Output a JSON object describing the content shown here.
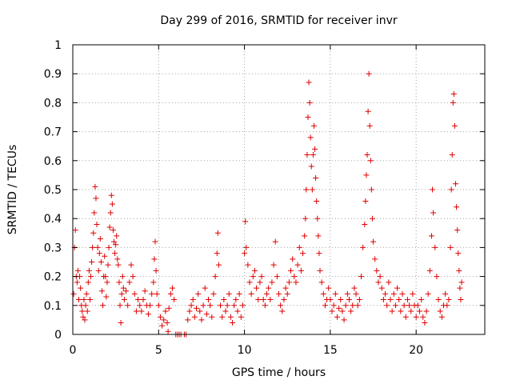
{
  "chart_data": {
    "type": "scatter",
    "title": "Day 299 of 2016, SRMTID for receiver invr",
    "xlabel": "GPS time / hours",
    "ylabel": "SRMTID / TECUs",
    "xlim": [
      0,
      24
    ],
    "ylim": [
      0,
      1
    ],
    "xticks": [
      0,
      5,
      10,
      15,
      20
    ],
    "yticks": [
      0,
      0.1,
      0.2,
      0.3,
      0.4,
      0.5,
      0.6,
      0.7,
      0.8,
      0.9,
      1
    ],
    "xtick_labels": [
      "0",
      "5",
      "10",
      "15",
      "20"
    ],
    "ytick_labels": [
      "0",
      "0.1",
      "0.2",
      "0.3",
      "0.4",
      "0.5",
      "0.6",
      "0.7",
      "0.8",
      "0.9",
      "1"
    ],
    "grid": true,
    "marker": "plus",
    "color": "#e00000",
    "series": [
      {
        "name": "SRMTID",
        "points": [
          [
            0.05,
            0.14
          ],
          [
            0.1,
            0.3
          ],
          [
            0.15,
            0.36
          ],
          [
            0.2,
            0.2
          ],
          [
            0.25,
            0.18
          ],
          [
            0.3,
            0.22
          ],
          [
            0.35,
            0.12
          ],
          [
            0.4,
            0.2
          ],
          [
            0.45,
            0.16
          ],
          [
            0.5,
            0.1
          ],
          [
            0.55,
            0.08
          ],
          [
            0.6,
            0.06
          ],
          [
            0.65,
            0.12
          ],
          [
            0.7,
            0.05
          ],
          [
            0.75,
            0.1
          ],
          [
            0.8,
            0.14
          ],
          [
            0.85,
            0.08
          ],
          [
            0.9,
            0.18
          ],
          [
            0.95,
            0.22
          ],
          [
            1.0,
            0.12
          ],
          [
            1.05,
            0.2
          ],
          [
            1.1,
            0.25
          ],
          [
            1.15,
            0.3
          ],
          [
            1.2,
            0.35
          ],
          [
            1.25,
            0.42
          ],
          [
            1.3,
            0.51
          ],
          [
            1.35,
            0.47
          ],
          [
            1.4,
            0.38
          ],
          [
            1.45,
            0.3
          ],
          [
            1.5,
            0.22
          ],
          [
            1.55,
            0.28
          ],
          [
            1.6,
            0.33
          ],
          [
            1.65,
            0.25
          ],
          [
            1.7,
            0.15
          ],
          [
            1.75,
            0.1
          ],
          [
            1.8,
            0.2
          ],
          [
            1.85,
            0.27
          ],
          [
            1.9,
            0.2
          ],
          [
            1.95,
            0.13
          ],
          [
            2.0,
            0.18
          ],
          [
            2.05,
            0.24
          ],
          [
            2.1,
            0.3
          ],
          [
            2.15,
            0.37
          ],
          [
            2.2,
            0.42
          ],
          [
            2.25,
            0.48
          ],
          [
            2.3,
            0.45
          ],
          [
            2.35,
            0.36
          ],
          [
            2.4,
            0.32
          ],
          [
            2.45,
            0.28
          ],
          [
            2.5,
            0.31
          ],
          [
            2.55,
            0.34
          ],
          [
            2.6,
            0.26
          ],
          [
            2.65,
            0.24
          ],
          [
            2.7,
            0.18
          ],
          [
            2.75,
            0.1
          ],
          [
            2.8,
            0.04
          ],
          [
            2.85,
            0.14
          ],
          [
            2.9,
            0.2
          ],
          [
            2.95,
            0.16
          ],
          [
            3.0,
            0.12
          ],
          [
            3.1,
            0.15
          ],
          [
            3.2,
            0.1
          ],
          [
            3.3,
            0.18
          ],
          [
            3.4,
            0.24
          ],
          [
            3.5,
            0.2
          ],
          [
            3.6,
            0.14
          ],
          [
            3.7,
            0.08
          ],
          [
            3.8,
            0.12
          ],
          [
            3.9,
            0.1
          ],
          [
            4.0,
            0.08
          ],
          [
            4.1,
            0.12
          ],
          [
            4.2,
            0.15
          ],
          [
            4.3,
            0.1
          ],
          [
            4.4,
            0.07
          ],
          [
            4.5,
            0.1
          ],
          [
            4.6,
            0.14
          ],
          [
            4.7,
            0.18
          ],
          [
            4.75,
            0.26
          ],
          [
            4.8,
            0.32
          ],
          [
            4.85,
            0.22
          ],
          [
            4.9,
            0.14
          ],
          [
            5.0,
            0.1
          ],
          [
            5.1,
            0.06
          ],
          [
            5.2,
            0.03
          ],
          [
            5.3,
            0.05
          ],
          [
            5.4,
            0.08
          ],
          [
            5.5,
            0.04
          ],
          [
            5.55,
            0.01
          ],
          [
            5.6,
            0.09
          ],
          [
            5.7,
            0.14
          ],
          [
            5.8,
            0.16
          ],
          [
            5.9,
            0.12
          ],
          [
            6.0,
            0.0
          ],
          [
            6.1,
            0.0
          ],
          [
            6.2,
            0.0
          ],
          [
            6.3,
            0.0
          ],
          [
            6.5,
            0.0
          ],
          [
            6.6,
            0.0
          ],
          [
            6.7,
            0.05
          ],
          [
            6.8,
            0.08
          ],
          [
            6.9,
            0.1
          ],
          [
            7.0,
            0.12
          ],
          [
            7.1,
            0.06
          ],
          [
            7.2,
            0.09
          ],
          [
            7.3,
            0.14
          ],
          [
            7.4,
            0.08
          ],
          [
            7.5,
            0.05
          ],
          [
            7.6,
            0.1
          ],
          [
            7.7,
            0.16
          ],
          [
            7.8,
            0.07
          ],
          [
            7.9,
            0.12
          ],
          [
            8.0,
            0.1
          ],
          [
            8.1,
            0.06
          ],
          [
            8.2,
            0.14
          ],
          [
            8.3,
            0.2
          ],
          [
            8.4,
            0.28
          ],
          [
            8.45,
            0.35
          ],
          [
            8.5,
            0.24
          ],
          [
            8.6,
            0.1
          ],
          [
            8.7,
            0.06
          ],
          [
            8.8,
            0.12
          ],
          [
            8.9,
            0.08
          ],
          [
            9.0,
            0.1
          ],
          [
            9.1,
            0.14
          ],
          [
            9.2,
            0.06
          ],
          [
            9.3,
            0.04
          ],
          [
            9.4,
            0.1
          ],
          [
            9.5,
            0.12
          ],
          [
            9.6,
            0.08
          ],
          [
            9.7,
            0.14
          ],
          [
            9.8,
            0.06
          ],
          [
            9.9,
            0.1
          ],
          [
            10.0,
            0.28
          ],
          [
            10.05,
            0.39
          ],
          [
            10.1,
            0.3
          ],
          [
            10.2,
            0.24
          ],
          [
            10.3,
            0.18
          ],
          [
            10.4,
            0.14
          ],
          [
            10.5,
            0.2
          ],
          [
            10.6,
            0.22
          ],
          [
            10.7,
            0.16
          ],
          [
            10.8,
            0.12
          ],
          [
            10.9,
            0.18
          ],
          [
            11.0,
            0.2
          ],
          [
            11.1,
            0.12
          ],
          [
            11.2,
            0.1
          ],
          [
            11.3,
            0.14
          ],
          [
            11.4,
            0.16
          ],
          [
            11.5,
            0.12
          ],
          [
            11.6,
            0.18
          ],
          [
            11.7,
            0.24
          ],
          [
            11.8,
            0.32
          ],
          [
            11.9,
            0.2
          ],
          [
            12.0,
            0.14
          ],
          [
            12.1,
            0.1
          ],
          [
            12.2,
            0.08
          ],
          [
            12.3,
            0.12
          ],
          [
            12.4,
            0.16
          ],
          [
            12.5,
            0.14
          ],
          [
            12.6,
            0.18
          ],
          [
            12.7,
            0.22
          ],
          [
            12.8,
            0.26
          ],
          [
            12.9,
            0.2
          ],
          [
            13.0,
            0.18
          ],
          [
            13.1,
            0.24
          ],
          [
            13.2,
            0.3
          ],
          [
            13.3,
            0.22
          ],
          [
            13.4,
            0.28
          ],
          [
            13.5,
            0.34
          ],
          [
            13.55,
            0.4
          ],
          [
            13.6,
            0.5
          ],
          [
            13.65,
            0.62
          ],
          [
            13.7,
            0.75
          ],
          [
            13.75,
            0.87
          ],
          [
            13.8,
            0.8
          ],
          [
            13.85,
            0.68
          ],
          [
            13.9,
            0.58
          ],
          [
            13.95,
            0.5
          ],
          [
            14.0,
            0.62
          ],
          [
            14.05,
            0.72
          ],
          [
            14.1,
            0.64
          ],
          [
            14.15,
            0.54
          ],
          [
            14.2,
            0.46
          ],
          [
            14.25,
            0.4
          ],
          [
            14.3,
            0.34
          ],
          [
            14.35,
            0.28
          ],
          [
            14.4,
            0.22
          ],
          [
            14.5,
            0.18
          ],
          [
            14.6,
            0.14
          ],
          [
            14.7,
            0.1
          ],
          [
            14.8,
            0.12
          ],
          [
            14.9,
            0.16
          ],
          [
            15.0,
            0.12
          ],
          [
            15.1,
            0.08
          ],
          [
            15.2,
            0.1
          ],
          [
            15.3,
            0.14
          ],
          [
            15.4,
            0.06
          ],
          [
            15.5,
            0.09
          ],
          [
            15.6,
            0.12
          ],
          [
            15.7,
            0.08
          ],
          [
            15.8,
            0.05
          ],
          [
            15.9,
            0.1
          ],
          [
            16.0,
            0.14
          ],
          [
            16.1,
            0.12
          ],
          [
            16.2,
            0.08
          ],
          [
            16.3,
            0.1
          ],
          [
            16.4,
            0.16
          ],
          [
            16.5,
            0.14
          ],
          [
            16.6,
            0.1
          ],
          [
            16.7,
            0.12
          ],
          [
            16.8,
            0.2
          ],
          [
            16.9,
            0.3
          ],
          [
            17.0,
            0.38
          ],
          [
            17.05,
            0.46
          ],
          [
            17.1,
            0.55
          ],
          [
            17.15,
            0.62
          ],
          [
            17.2,
            0.77
          ],
          [
            17.25,
            0.9
          ],
          [
            17.3,
            0.72
          ],
          [
            17.35,
            0.6
          ],
          [
            17.4,
            0.5
          ],
          [
            17.45,
            0.4
          ],
          [
            17.5,
            0.32
          ],
          [
            17.6,
            0.26
          ],
          [
            17.7,
            0.22
          ],
          [
            17.8,
            0.18
          ],
          [
            17.9,
            0.2
          ],
          [
            18.0,
            0.16
          ],
          [
            18.1,
            0.12
          ],
          [
            18.2,
            0.14
          ],
          [
            18.3,
            0.1
          ],
          [
            18.4,
            0.18
          ],
          [
            18.5,
            0.12
          ],
          [
            18.6,
            0.08
          ],
          [
            18.7,
            0.14
          ],
          [
            18.8,
            0.1
          ],
          [
            18.9,
            0.16
          ],
          [
            19.0,
            0.12
          ],
          [
            19.1,
            0.08
          ],
          [
            19.2,
            0.14
          ],
          [
            19.3,
            0.1
          ],
          [
            19.4,
            0.06
          ],
          [
            19.5,
            0.12
          ],
          [
            19.6,
            0.1
          ],
          [
            19.7,
            0.08
          ],
          [
            19.8,
            0.14
          ],
          [
            19.9,
            0.1
          ],
          [
            20.0,
            0.06
          ],
          [
            20.1,
            0.1
          ],
          [
            20.2,
            0.08
          ],
          [
            20.3,
            0.12
          ],
          [
            20.4,
            0.06
          ],
          [
            20.5,
            0.04
          ],
          [
            20.6,
            0.08
          ],
          [
            20.7,
            0.14
          ],
          [
            20.8,
            0.22
          ],
          [
            20.9,
            0.34
          ],
          [
            20.95,
            0.5
          ],
          [
            21.0,
            0.42
          ],
          [
            21.1,
            0.3
          ],
          [
            21.2,
            0.2
          ],
          [
            21.3,
            0.12
          ],
          [
            21.4,
            0.08
          ],
          [
            21.5,
            0.06
          ],
          [
            21.6,
            0.1
          ],
          [
            21.7,
            0.14
          ],
          [
            21.8,
            0.1
          ],
          [
            21.9,
            0.12
          ],
          [
            22.0,
            0.3
          ],
          [
            22.05,
            0.5
          ],
          [
            22.1,
            0.62
          ],
          [
            22.15,
            0.8
          ],
          [
            22.2,
            0.83
          ],
          [
            22.25,
            0.72
          ],
          [
            22.3,
            0.52
          ],
          [
            22.35,
            0.44
          ],
          [
            22.4,
            0.36
          ],
          [
            22.45,
            0.28
          ],
          [
            22.5,
            0.22
          ],
          [
            22.55,
            0.16
          ],
          [
            22.6,
            0.12
          ],
          [
            22.65,
            0.18
          ]
        ]
      }
    ]
  }
}
